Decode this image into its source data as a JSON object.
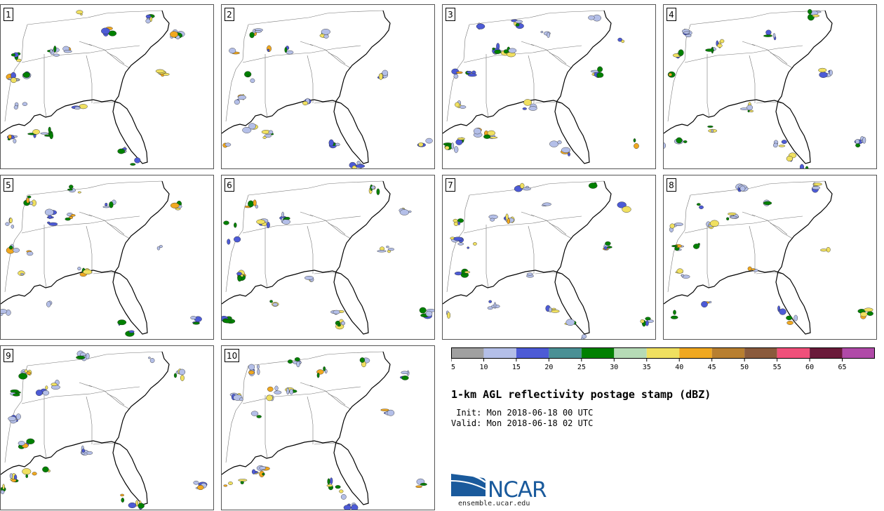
{
  "panels": [
    {
      "label": "1"
    },
    {
      "label": "2"
    },
    {
      "label": "3"
    },
    {
      "label": "4"
    },
    {
      "label": "5"
    },
    {
      "label": "6"
    },
    {
      "label": "7"
    },
    {
      "label": "8"
    },
    {
      "label": "9"
    },
    {
      "label": "10"
    }
  ],
  "colorbar": {
    "colors": [
      "#a0a0a0",
      "#b4bfe8",
      "#4d5bd6",
      "#4a9095",
      "#008000",
      "#b6dbb6",
      "#f0e060",
      "#f0a820",
      "#b87f30",
      "#8a5a3c",
      "#f0507a",
      "#6a1a3a",
      "#b04aa8"
    ],
    "ticks": [
      "5",
      "10",
      "15",
      "20",
      "25",
      "30",
      "35",
      "40",
      "45",
      "50",
      "55",
      "60",
      "65"
    ]
  },
  "title": "1-km AGL reflectivity postage stamp (dBZ)",
  "init": " Init: Mon 2018-06-18 00 UTC",
  "valid": "Valid: Mon 2018-06-18 02 UTC",
  "logo": {
    "name": "ncar-logo",
    "wordmark": "NCAR",
    "url_text": "ensemble.ucar.edu",
    "color": "#1a5a9c"
  },
  "echo_colors": {
    "light": "#b4bfe8",
    "blue": "#4d5bd6",
    "green": "#008000",
    "yellow": "#f0e060",
    "orange": "#f0a820"
  }
}
